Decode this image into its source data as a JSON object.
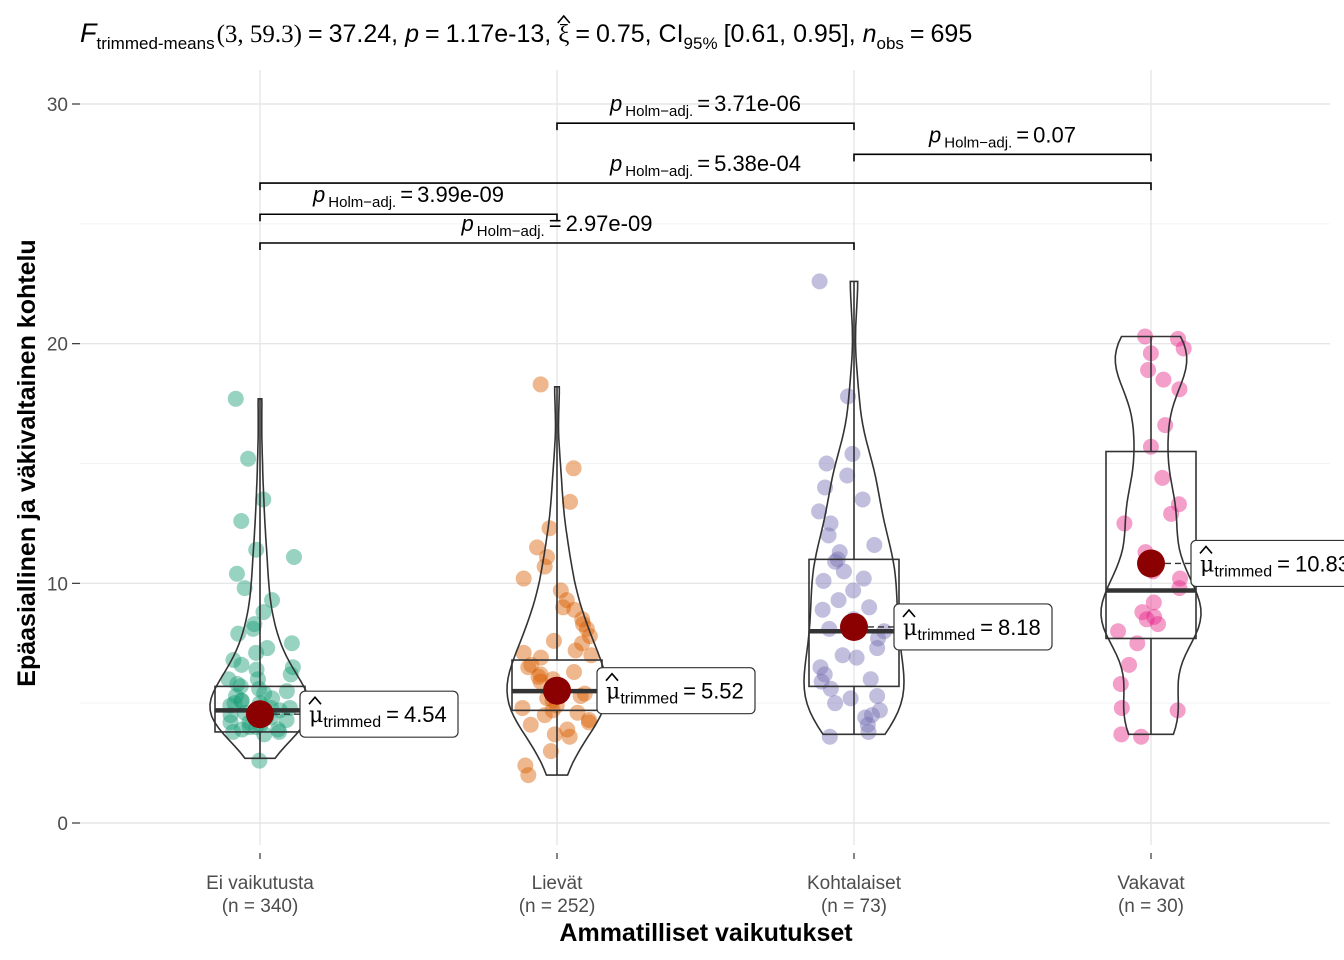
{
  "chart_data": {
    "type": "violin-box-scatter",
    "title": {
      "stat_label": "F",
      "stat_sub": "trimmed-means",
      "df": "(3, 59.3)",
      "stat_value": "37.24",
      "p_label": "p",
      "p_value": "1.17e-13",
      "effect_label": "ξ",
      "effect_value": "0.75",
      "ci_label": "CI",
      "ci_sub": "95%",
      "ci_value": "[0.61, 0.95]",
      "n_label": "n",
      "n_sub": "obs",
      "n_value": "695"
    },
    "xlabel": "Ammatilliset vaikutukset",
    "ylabel": "Epäasiallinen ja väkivaltainen kohtelu",
    "ylim": [
      -1.2,
      31.5
    ],
    "yticks": [
      0,
      10,
      20,
      30
    ],
    "ytick_labels": [
      "0",
      "10",
      "20",
      "30"
    ],
    "grid": true,
    "groups": [
      {
        "label": "Ei vaikutusta",
        "n_label": "(n = 340)",
        "color": "#1b9e77",
        "box": {
          "q1": 3.8,
          "median": 4.7,
          "q3": 5.7,
          "whisker_low": 2.7,
          "whisker_high": 17.7
        },
        "trimmed_mean": 4.54,
        "mean_label_name": "μ",
        "mean_label_sub": "trimmed",
        "mean_label_value": "4.54"
      },
      {
        "label": "Lievät",
        "n_label": "(n = 252)",
        "color": "#d95f02",
        "box": {
          "q1": 4.7,
          "median": 5.5,
          "q3": 6.8,
          "whisker_low": 2.0,
          "whisker_high": 18.2
        },
        "trimmed_mean": 5.52,
        "mean_label_name": "μ",
        "mean_label_sub": "trimmed",
        "mean_label_value": "5.52"
      },
      {
        "label": "Kohtalaiset",
        "n_label": "(n = 73)",
        "color": "#7570b3",
        "box": {
          "q1": 5.7,
          "median": 8.0,
          "q3": 11.0,
          "whisker_low": 3.7,
          "whisker_high": 22.6
        },
        "trimmed_mean": 8.18,
        "mean_label_name": "μ",
        "mean_label_sub": "trimmed",
        "mean_label_value": "8.18"
      },
      {
        "label": "Vakavat",
        "n_label": "(n = 30)",
        "color": "#e7298a",
        "box": {
          "q1": 7.7,
          "median": 9.7,
          "q3": 15.5,
          "whisker_low": 3.7,
          "whisker_high": 20.3
        },
        "trimmed_mean": 10.83,
        "mean_label_name": "μ",
        "mean_label_sub": "trimmed",
        "mean_label_value": "10.83"
      }
    ],
    "comparisons": [
      {
        "from": "Ei vaikutusta",
        "to": "Lievät",
        "y": 25.4,
        "p_label": "p",
        "p_sub": "Holm−adj.",
        "p_value": "3.99e-09"
      },
      {
        "from": "Ei vaikutusta",
        "to": "Kohtalaiset",
        "y": 24.2,
        "p_label": "p",
        "p_sub": "Holm−adj.",
        "p_value": "2.97e-09"
      },
      {
        "from": "Ei vaikutusta",
        "to": "Vakavat",
        "y": 26.7,
        "p_label": "p",
        "p_sub": "Holm−adj.",
        "p_value": "5.38e-04"
      },
      {
        "from": "Lievät",
        "to": "Kohtalaiset",
        "y": 29.2,
        "p_label": "p",
        "p_sub": "Holm−adj.",
        "p_value": "3.71e-06"
      },
      {
        "from": "Kohtalaiset",
        "to": "Vakavat",
        "y": 27.9,
        "p_label": "p",
        "p_sub": "Holm−adj.",
        "p_value": "0.07"
      }
    ],
    "points": [
      [
        2.6,
        3.7,
        3.8,
        3.9,
        4.0,
        4.1,
        4.2,
        4.3,
        4.4,
        4.5,
        4.6,
        4.7,
        4.8,
        4.9,
        5.0,
        5.1,
        5.2,
        5.3,
        5.4,
        5.6,
        5.8,
        6.0,
        6.2,
        6.5,
        6.8,
        7.1,
        7.5,
        7.9,
        8.3,
        8.8,
        9.3,
        9.8,
        10.4,
        11.1,
        11.4,
        12.6,
        13.5,
        15.2,
        17.7,
        3.8,
        4.0,
        4.2,
        4.5,
        4.8,
        5.1,
        5.5,
        6.0,
        6.6,
        7.3,
        8.1,
        3.9,
        4.4,
        5.0,
        5.7,
        6.4
      ],
      [
        2.0,
        2.4,
        3.0,
        3.6,
        3.9,
        4.2,
        4.5,
        4.7,
        4.9,
        5.1,
        5.3,
        5.5,
        5.7,
        5.9,
        6.1,
        6.3,
        6.6,
        6.9,
        7.2,
        7.5,
        7.8,
        8.1,
        8.5,
        8.9,
        9.3,
        9.7,
        10.2,
        10.7,
        11.1,
        11.5,
        12.3,
        13.4,
        14.8,
        18.3,
        4.3,
        4.8,
        5.2,
        5.6,
        6.0,
        6.5,
        7.0,
        7.6,
        8.3,
        9.0,
        3.7,
        4.1,
        4.6,
        5.4,
        6.2,
        7.1
      ],
      [
        3.6,
        3.8,
        4.1,
        4.4,
        4.7,
        5.0,
        5.3,
        5.6,
        5.9,
        6.2,
        6.5,
        6.9,
        7.3,
        7.7,
        8.1,
        8.5,
        8.9,
        9.3,
        9.7,
        10.1,
        10.5,
        10.9,
        11.3,
        11.6,
        12.0,
        12.5,
        13.0,
        13.5,
        14.0,
        14.5,
        15.0,
        15.4,
        17.8,
        22.6,
        4.5,
        5.2,
        6.0,
        7.0,
        8.0,
        9.0,
        10.2,
        11.0
      ],
      [
        3.6,
        3.7,
        4.7,
        4.8,
        5.8,
        6.6,
        7.5,
        8.0,
        8.3,
        8.5,
        8.8,
        9.2,
        9.8,
        10.5,
        11.3,
        12.5,
        13.3,
        14.4,
        15.7,
        18.1,
        18.5,
        18.9,
        19.8,
        20.2,
        20.3,
        19.6,
        16.6,
        12.9,
        10.2,
        8.6
      ]
    ]
  }
}
